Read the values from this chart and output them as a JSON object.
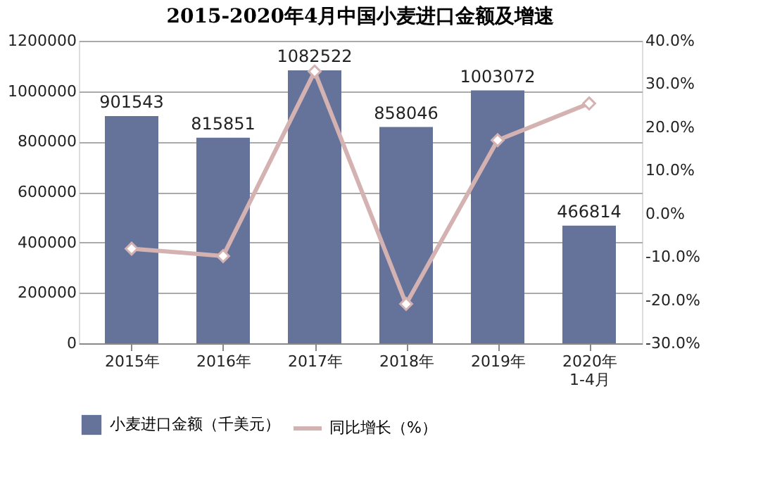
{
  "chart_data": {
    "type": "bar",
    "title": "2015-2020年4月中国小麦进口金额及增速",
    "categories": [
      "2015年",
      "2016年",
      "2017年",
      "2018年",
      "2019年",
      "2020年\n1-4月"
    ],
    "series": [
      {
        "name": "小麦进口金额（千美元）",
        "color": "#65739a",
        "values": [
          901543,
          815851,
          1082522,
          858046,
          1003072,
          466814
        ],
        "value_labels": [
          "901543",
          "815851",
          "1082522",
          "858046",
          "1003072",
          "466814"
        ]
      },
      {
        "name": "同比增长（%）",
        "type": "line",
        "axis": "y2",
        "color": "#d4b2b2",
        "marker": "diamond",
        "values": [
          -8.1,
          -9.8,
          32.9,
          -20.9,
          17.0,
          25.5
        ]
      }
    ],
    "ylim": [
      0,
      1200000
    ],
    "yticks": [
      0,
      200000,
      400000,
      600000,
      800000,
      1000000,
      1200000
    ],
    "y2lim": [
      -30,
      40
    ],
    "y2ticks": [
      {
        "value": -30,
        "label": "-30.0%"
      },
      {
        "value": -20,
        "label": "-20.0%"
      },
      {
        "value": -10,
        "label": "-10.0%"
      },
      {
        "value": 0,
        "label": "0.0%"
      },
      {
        "value": 10,
        "label": "10.0%"
      },
      {
        "value": 20,
        "label": "20.0%"
      },
      {
        "value": 30,
        "label": "30.0%"
      },
      {
        "value": 40,
        "label": "40.0%"
      }
    ],
    "grid": "y",
    "legend": "bottom"
  }
}
